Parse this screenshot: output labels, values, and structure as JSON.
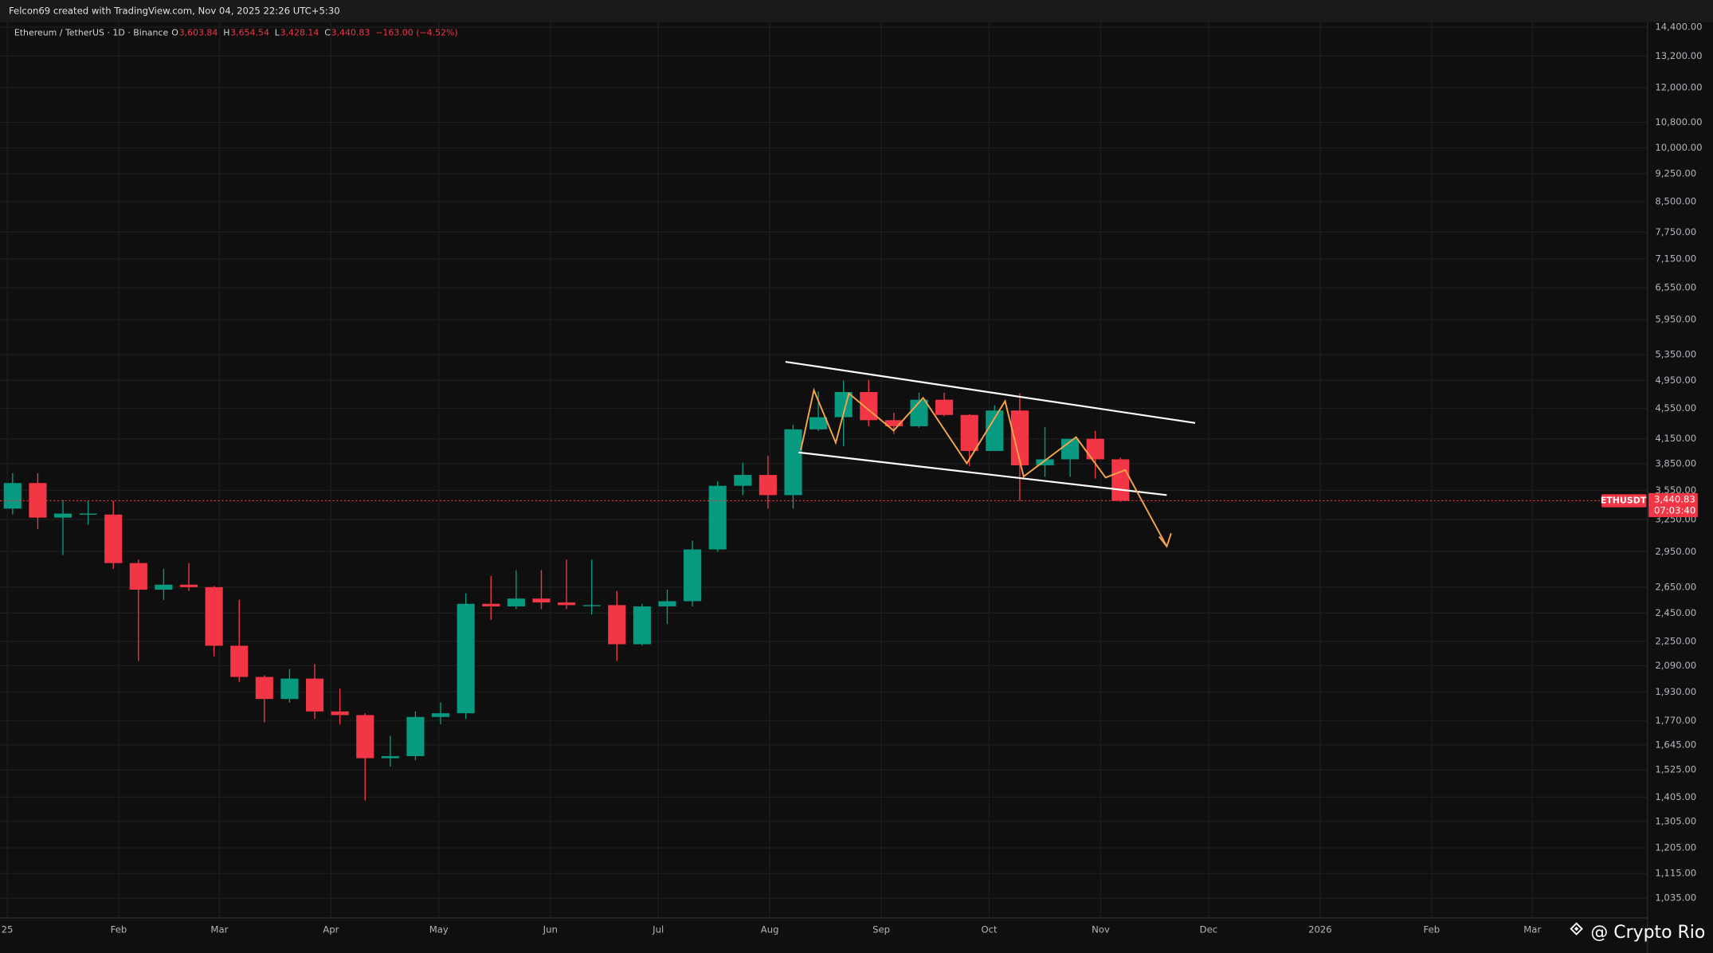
{
  "chart_data": {
    "type": "candlestick",
    "credit": "Felcon69 created with TradingView.com, Nov 04, 2025 22:26 UTC+5:30",
    "symbol": "Ethereum / TetherUS · 1D · Binance",
    "ohlc_legend": {
      "o_key": "O",
      "o": "3,603.84",
      "h_key": "H",
      "h": "3,654.54",
      "l_key": "L",
      "l": "3,428.14",
      "c_key": "C",
      "c": "3,440.83",
      "change": "−163.00 (−4.52%)"
    },
    "last_price": {
      "ticker": "ETHUSDT",
      "price": {
        "value": 3440.83,
        "label": "3,440.83"
      },
      "countdown": "07:03:40",
      "color": "#f23645"
    },
    "watermark": "@ Crypto Rio",
    "up_color": "#089981",
    "down_color": "#f23645",
    "log_scale": true,
    "grid": true,
    "x": [
      "2024-12-30",
      "2025-01-06",
      "2025-01-13",
      "2025-01-20",
      "2025-01-27",
      "2025-02-03",
      "2025-02-10",
      "2025-02-17",
      "2025-02-24",
      "2025-03-03",
      "2025-03-10",
      "2025-03-17",
      "2025-03-24",
      "2025-03-31",
      "2025-04-07",
      "2025-04-14",
      "2025-04-21",
      "2025-04-28",
      "2025-05-05",
      "2025-05-12",
      "2025-05-19",
      "2025-05-26",
      "2025-06-02",
      "2025-06-09",
      "2025-06-16",
      "2025-06-23",
      "2025-06-30",
      "2025-07-07",
      "2025-07-14",
      "2025-07-21",
      "2025-07-28",
      "2025-08-04",
      "2025-08-11",
      "2025-08-18",
      "2025-08-25",
      "2025-09-01",
      "2025-09-08",
      "2025-09-15",
      "2025-09-22",
      "2025-09-29",
      "2025-10-06",
      "2025-10-13",
      "2025-10-20",
      "2025-10-27",
      "2025-11-03"
    ],
    "open": [
      3360,
      3630,
      3270,
      3310,
      3300,
      2850,
      2630,
      2670,
      2650,
      2220,
      2020,
      1890,
      2010,
      1820,
      1800,
      1580,
      1590,
      1790,
      1810,
      2520,
      2500,
      2560,
      2530,
      2510,
      2510,
      2230,
      2500,
      2540,
      2970,
      3600,
      3720,
      3500,
      4270,
      4430,
      4780,
      4390,
      4310,
      4670,
      4460,
      4000,
      4520,
      3830,
      3900,
      4150,
      3900
    ],
    "high": [
      3740,
      3740,
      3450,
      3440,
      3440,
      2880,
      2800,
      2850,
      2660,
      2550,
      2030,
      2070,
      2100,
      1950,
      1810,
      1690,
      1820,
      1870,
      2600,
      2740,
      2790,
      2790,
      2880,
      2880,
      2620,
      2520,
      2630,
      3050,
      3650,
      3860,
      3940,
      4330,
      4790,
      4950,
      4960,
      4490,
      4770,
      4770,
      4470,
      4590,
      4760,
      4300,
      4100,
      4250,
      3920
    ],
    "low": [
      3300,
      3160,
      2920,
      3200,
      2800,
      2120,
      2550,
      2620,
      2150,
      1990,
      1760,
      1870,
      1780,
      1750,
      1390,
      1540,
      1570,
      1750,
      1780,
      2400,
      2480,
      2480,
      2480,
      2440,
      2120,
      2220,
      2370,
      2500,
      2950,
      3500,
      3360,
      3360,
      4250,
      4060,
      4310,
      4210,
      4290,
      4440,
      3820,
      4000,
      3440,
      3700,
      3700,
      3680,
      3430
    ],
    "close": [
      3630,
      3270,
      3310,
      3310,
      2850,
      2630,
      2670,
      2650,
      2220,
      2020,
      1890,
      2010,
      1820,
      1800,
      1580,
      1590,
      1790,
      1810,
      2520,
      2500,
      2560,
      2530,
      2510,
      2510,
      2230,
      2500,
      2540,
      2970,
      3600,
      3720,
      3500,
      4270,
      4430,
      4780,
      4390,
      4310,
      4670,
      4460,
      4000,
      4520,
      3830,
      3900,
      4150,
      3900,
      3440
    ],
    "xlim": [
      "2024-12-30",
      "2026-04-02"
    ],
    "xticks": [
      {
        "value": "2025-01-01",
        "label": "25"
      },
      {
        "value": "2025-02-01",
        "label": "Feb"
      },
      {
        "value": "2025-03-01",
        "label": "Mar"
      },
      {
        "value": "2025-04-01",
        "label": "Apr"
      },
      {
        "value": "2025-05-01",
        "label": "May"
      },
      {
        "value": "2025-06-01",
        "label": "Jun"
      },
      {
        "value": "2025-07-01",
        "label": "Jul"
      },
      {
        "value": "2025-08-01",
        "label": "Aug"
      },
      {
        "value": "2025-09-01",
        "label": "Sep"
      },
      {
        "value": "2025-10-01",
        "label": "Oct"
      },
      {
        "value": "2025-11-01",
        "label": "Nov"
      },
      {
        "value": "2025-12-01",
        "label": "Dec"
      },
      {
        "value": "2026-01-01",
        "label": "2026"
      },
      {
        "value": "2026-02-01",
        "label": "Feb"
      },
      {
        "value": "2026-03-01",
        "label": "Mar"
      }
    ],
    "ylim": [
      975,
      14630
    ],
    "yticks": [
      {
        "value": 14400,
        "label": "14,400.00"
      },
      {
        "value": 13200,
        "label": "13,200.00"
      },
      {
        "value": 12000,
        "label": "12,000.00"
      },
      {
        "value": 10800,
        "label": "10,800.00"
      },
      {
        "value": 10000,
        "label": "10,000.00"
      },
      {
        "value": 9250,
        "label": "9,250.00"
      },
      {
        "value": 8500,
        "label": "8,500.00"
      },
      {
        "value": 7750,
        "label": "7,750.00"
      },
      {
        "value": 7150,
        "label": "7,150.00"
      },
      {
        "value": 6550,
        "label": "6,550.00"
      },
      {
        "value": 5950,
        "label": "5,950.00"
      },
      {
        "value": 5350,
        "label": "5,350.00"
      },
      {
        "value": 4950,
        "label": "4,950.00"
      },
      {
        "value": 4550,
        "label": "4,550.00"
      },
      {
        "value": 4150,
        "label": "4,150.00"
      },
      {
        "value": 3850,
        "label": "3,850.00"
      },
      {
        "value": 3550,
        "label": "3,550.00"
      },
      {
        "value": 3250,
        "label": "3,250.00"
      },
      {
        "value": 2950,
        "label": "2,950.00"
      },
      {
        "value": 2650,
        "label": "2,650.00"
      },
      {
        "value": 2450,
        "label": "2,450.00"
      },
      {
        "value": 2250,
        "label": "2,250.00"
      },
      {
        "value": 2090,
        "label": "2,090.00"
      },
      {
        "value": 1930,
        "label": "1,930.00"
      },
      {
        "value": 1770,
        "label": "1,770.00"
      },
      {
        "value": 1645,
        "label": "1,645.00"
      },
      {
        "value": 1525,
        "label": "1,525.00"
      },
      {
        "value": 1405,
        "label": "1,405.00"
      },
      {
        "value": 1305,
        "label": "1,305.00"
      },
      {
        "value": 1205,
        "label": "1,205.00"
      },
      {
        "value": 1115,
        "label": "1,115.00"
      },
      {
        "value": 1035,
        "label": "1,035.00"
      }
    ]
  }
}
